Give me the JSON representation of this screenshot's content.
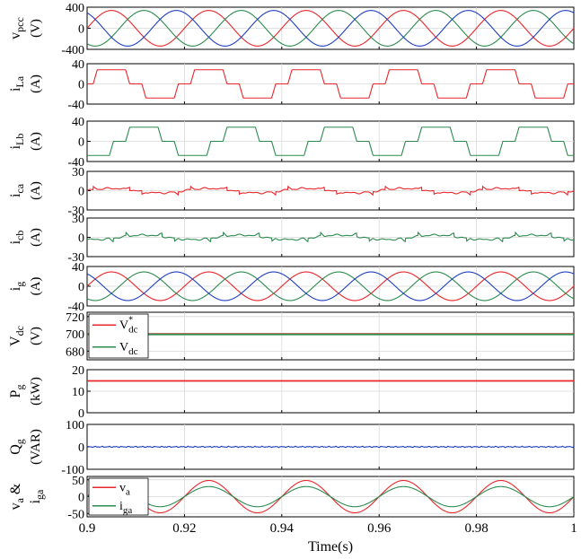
{
  "chart_data": {
    "type": "line",
    "x": {
      "range": [
        0.9,
        1.0
      ],
      "ticks": [
        0.9,
        0.92,
        0.94,
        0.96,
        0.98,
        1.0
      ],
      "tick_labels": [
        "0.9",
        "0.92",
        "0.94",
        "0.96",
        "0.98",
        "1"
      ],
      "label": "Time(s)"
    },
    "grid": true,
    "fundamental_hz": 50,
    "panels": [
      {
        "id": "vpcc",
        "ylabel": "v_pcc (V)",
        "ylabel_main": "v",
        "ylabel_sub": "pcc",
        "ylabel_unit": "(V)",
        "ylim": [
          -400,
          400
        ],
        "yticks": [
          400,
          0,
          -400
        ],
        "ytick_labels": [
          "400",
          "0",
          "-400"
        ],
        "series": [
          {
            "kind": "sine",
            "amplitude": 338,
            "phase_deg": 0,
            "color": "#e8262b"
          },
          {
            "kind": "sine",
            "amplitude": 338,
            "phase_deg": -120,
            "color": "#2b8a4e"
          },
          {
            "kind": "sine",
            "amplitude": 338,
            "phase_deg": 120,
            "color": "#1f3fbf"
          }
        ]
      },
      {
        "id": "iLa",
        "ylabel": "i_La (A)",
        "ylabel_main": "i",
        "ylabel_sub": "La",
        "ylabel_unit": "(A)",
        "ylim": [
          -40,
          40
        ],
        "yticks": [
          40,
          0,
          -40
        ],
        "ytick_labels": [
          "40",
          "0",
          "-40"
        ],
        "series": [
          {
            "kind": "rectifier",
            "amplitude": 28,
            "phase_deg": 0,
            "color": "#e8262b"
          }
        ]
      },
      {
        "id": "iLb",
        "ylabel": "i_Lb (A)",
        "ylabel_main": "i",
        "ylabel_sub": "Lb",
        "ylabel_unit": "(A)",
        "ylim": [
          -40,
          40
        ],
        "yticks": [
          40,
          0,
          -40
        ],
        "ytick_labels": [
          "40",
          "0",
          "-40"
        ],
        "series": [
          {
            "kind": "rectifier",
            "amplitude": 28,
            "phase_deg": -120,
            "color": "#2b8a4e"
          }
        ]
      },
      {
        "id": "ica",
        "ylabel": "i_ca (A)",
        "ylabel_main": "i",
        "ylabel_sub": "ca",
        "ylabel_unit": "(A)",
        "ylim": [
          -30,
          30
        ],
        "yticks": [
          30,
          0,
          -30
        ],
        "ytick_labels": [
          "30",
          "0",
          "-30"
        ],
        "series": [
          {
            "kind": "compensator",
            "amplitude": 10,
            "phase_deg": 0,
            "color": "#e8262b"
          }
        ]
      },
      {
        "id": "icb",
        "ylabel": "i_cb (A)",
        "ylabel_main": "i",
        "ylabel_sub": "cb",
        "ylabel_unit": "(A)",
        "ylim": [
          -30,
          30
        ],
        "yticks": [
          30,
          0,
          -30
        ],
        "ytick_labels": [
          "30",
          "0",
          "-30"
        ],
        "series": [
          {
            "kind": "compensator",
            "amplitude": 10,
            "phase_deg": -120,
            "color": "#2b8a4e"
          }
        ]
      },
      {
        "id": "ig",
        "ylabel": "i_g (A)",
        "ylabel_main": "i",
        "ylabel_sub": "g",
        "ylabel_unit": "(A)",
        "ylim": [
          -40,
          40
        ],
        "yticks": [
          40,
          0,
          -40
        ],
        "ytick_labels": [
          "40",
          "0",
          "-40"
        ],
        "series": [
          {
            "kind": "sine",
            "amplitude": 29,
            "phase_deg": 0,
            "color": "#e8262b"
          },
          {
            "kind": "sine",
            "amplitude": 29,
            "phase_deg": -120,
            "color": "#2b8a4e"
          },
          {
            "kind": "sine",
            "amplitude": 29,
            "phase_deg": 120,
            "color": "#1f3fbf"
          }
        ]
      },
      {
        "id": "vdc",
        "ylabel": "V_dc (V)",
        "ylabel_main": "V",
        "ylabel_sub": "dc",
        "ylabel_unit": "(V)",
        "ylim": [
          670,
          725
        ],
        "yticks": [
          720,
          700,
          680
        ],
        "ytick_labels": [
          "720",
          "700",
          "680"
        ],
        "series": [
          {
            "kind": "const",
            "value": 700,
            "color": "#e8262b"
          },
          {
            "kind": "const",
            "value": 699.4,
            "color": "#2b8a4e"
          }
        ],
        "legend": {
          "placement": "top-left",
          "entries": [
            {
              "label": "V",
              "sub": "dc",
              "sup": "*",
              "color": "#e8262b"
            },
            {
              "label": "V",
              "sub": "dc",
              "sup": "",
              "color": "#2b8a4e"
            }
          ]
        }
      },
      {
        "id": "pg",
        "ylabel": "P_g (kW)",
        "ylabel_main": "P",
        "ylabel_sub": "g",
        "ylabel_unit": "(kW)",
        "ylim": [
          0,
          20
        ],
        "yticks": [
          20,
          10,
          0
        ],
        "ytick_labels": [
          "20",
          "10",
          "0"
        ],
        "series": [
          {
            "kind": "const",
            "value": 14.8,
            "color": "#e8262b"
          }
        ]
      },
      {
        "id": "qg",
        "ylabel": "Q_g (VAR)",
        "ylabel_main": "Q",
        "ylabel_sub": "g",
        "ylabel_unit": "(VAR)",
        "ylim": [
          -100,
          100
        ],
        "yticks": [
          100,
          0,
          -100
        ],
        "ytick_labels": [
          "100",
          "0",
          "-100"
        ],
        "series": [
          {
            "kind": "noise",
            "value": 0,
            "amplitude": 3,
            "color": "#1f3fbf"
          }
        ]
      },
      {
        "id": "vaiga",
        "ylabel": "v_a & i_ga",
        "ylabel_main": "v",
        "ylabel_sub": "a",
        "ylabel_amp": "&",
        "ylabel_main2": "i",
        "ylabel_sub2": "ga",
        "ylim": [
          -60,
          60
        ],
        "yticks": [
          50,
          0,
          -50
        ],
        "ytick_labels": [
          "50",
          "0",
          "-50"
        ],
        "series": [
          {
            "kind": "sine",
            "amplitude": 48,
            "phase_deg": 0,
            "color": "#e8262b"
          },
          {
            "kind": "sine",
            "amplitude": 30,
            "phase_deg": 0,
            "color": "#2b8a4e"
          }
        ],
        "legend": {
          "placement": "top-left",
          "entries": [
            {
              "label": "v",
              "sub": "a",
              "sup": "",
              "color": "#e8262b"
            },
            {
              "label": "i",
              "sub": "ga",
              "sup": "",
              "color": "#2b8a4e"
            }
          ]
        }
      }
    ]
  }
}
